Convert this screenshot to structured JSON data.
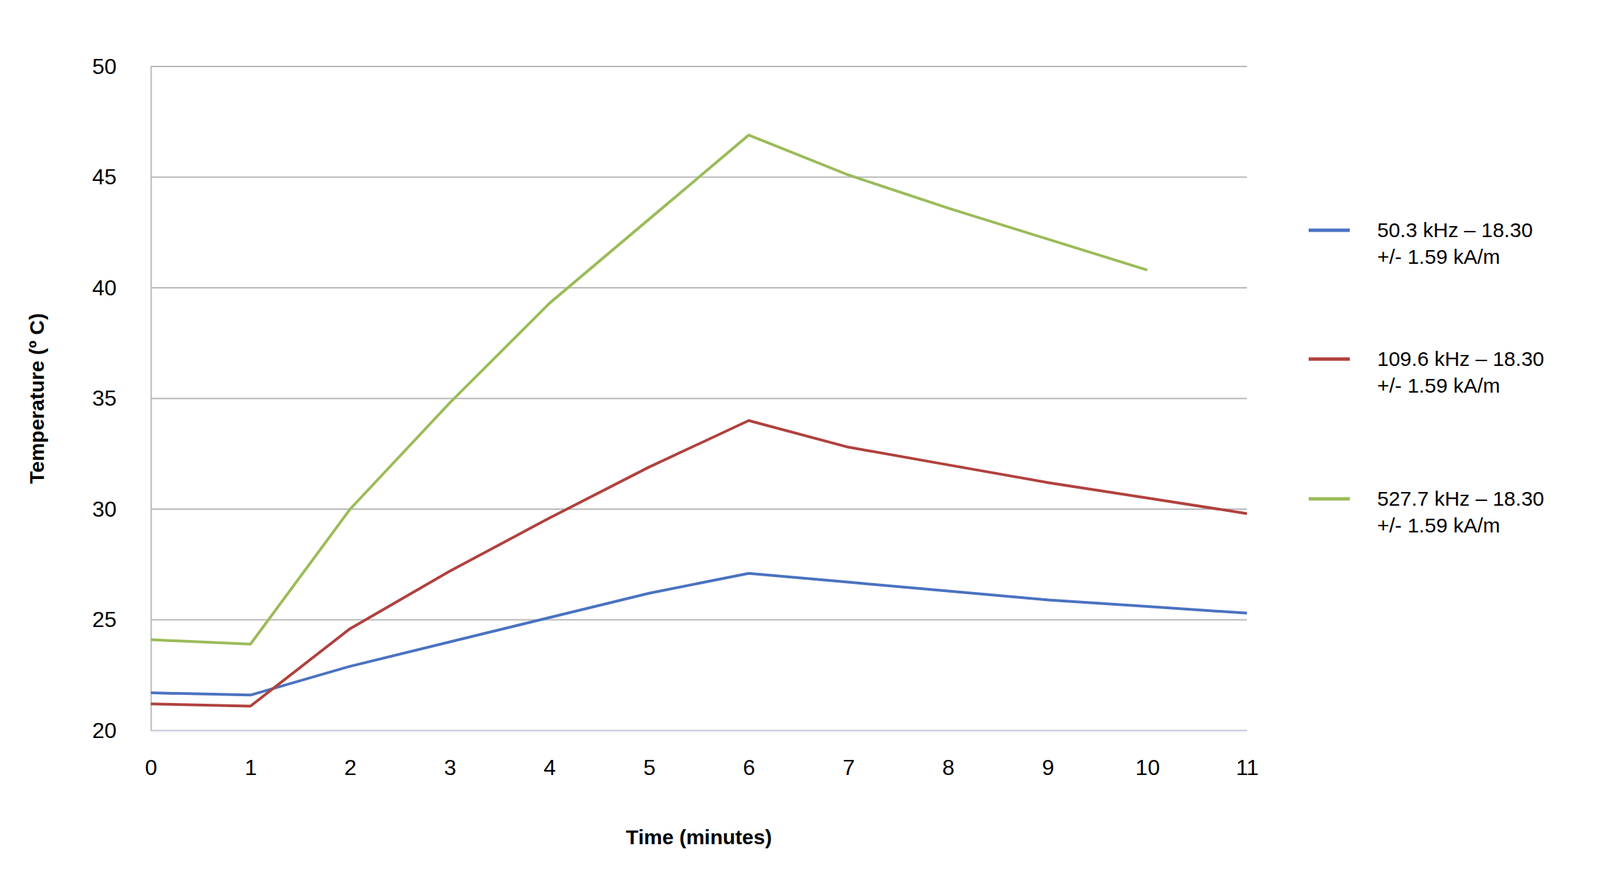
{
  "chart_data": {
    "type": "line",
    "x_label": "Time (minutes)",
    "y_label": "Temperature (º C)",
    "x": [
      0,
      1,
      2,
      3,
      4,
      5,
      6,
      7,
      8,
      9,
      10,
      11
    ],
    "series": [
      {
        "name": "50.3 kHz – 18.30 +/- 1.59 kA/m",
        "color": "#4a72c0",
        "values": [
          21.7,
          21.6,
          22.9,
          24.0,
          25.1,
          26.2,
          27.1,
          26.7,
          26.3,
          25.9,
          25.6,
          25.3
        ]
      },
      {
        "name": "109.6 kHz – 18.30 +/- 1.59 kA/m",
        "color": "#b0413e",
        "values": [
          21.2,
          21.1,
          24.6,
          27.2,
          29.6,
          31.9,
          34.0,
          32.8,
          32.0,
          31.2,
          30.5,
          29.8
        ]
      },
      {
        "name": "527.7 kHz – 18.30 +/- 1.59 kA/m",
        "color": "#9bbb59",
        "values": [
          24.1,
          23.9,
          30.0,
          34.8,
          39.3,
          43.1,
          46.9,
          45.1,
          43.6,
          42.2,
          40.8,
          null
        ]
      }
    ],
    "xlim": [
      0,
      11
    ],
    "xticks": [
      0,
      1,
      2,
      3,
      4,
      5,
      6,
      7,
      8,
      9,
      10,
      11
    ],
    "ylim": [
      20,
      50
    ],
    "yticks": [
      20,
      25,
      30,
      35,
      40,
      45,
      50
    ],
    "grid": true,
    "legend": "right"
  }
}
